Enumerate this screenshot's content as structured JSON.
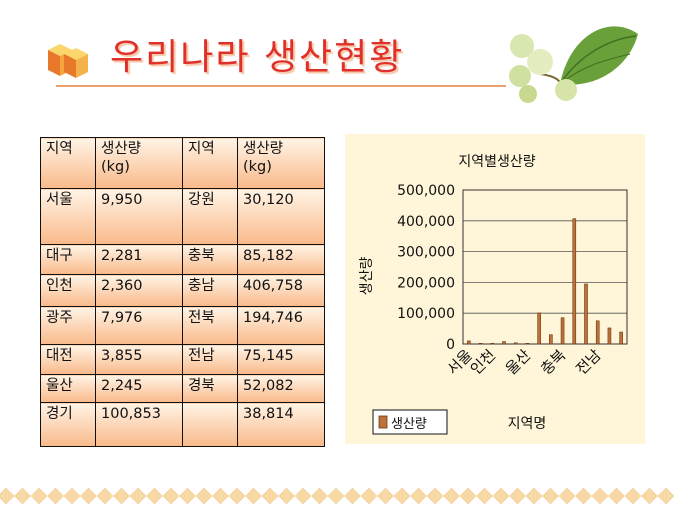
{
  "title": "우리나라 생산현황",
  "table": {
    "headers": [
      [
        "지역",
        "생산량\n(kg)",
        "지역",
        "생산량\n(kg)"
      ]
    ],
    "rows": [
      [
        "서울",
        "9,950",
        "강원",
        "30,120"
      ],
      [
        "대구",
        "2,281",
        "충북",
        "85,182"
      ],
      [
        "인천",
        "2,360",
        "충남",
        "406,758"
      ],
      [
        "광주",
        "7,976",
        "전북",
        "194,746"
      ],
      [
        "대전",
        "3,855",
        "전남",
        "75,145"
      ],
      [
        "울산",
        "2,245",
        "경북",
        "52,082"
      ],
      [
        "경기",
        "100,853",
        "",
        "38,814"
      ]
    ]
  },
  "chart_data": {
    "type": "bar",
    "title": "지역별생산량",
    "xlabel": "지역명",
    "ylabel": "생산량",
    "ylim": [
      0,
      500000
    ],
    "yticks": [
      "0",
      "100,000",
      "200,000",
      "300,000",
      "400,000",
      "500,000"
    ],
    "categories": [
      "서울",
      "대구",
      "인천",
      "광주",
      "대전",
      "울산",
      "경기",
      "강원",
      "충북",
      "충남",
      "전북",
      "전남",
      "경북",
      ""
    ],
    "visible_category_labels": [
      "서울",
      "인천",
      "울산",
      "충북",
      "전남"
    ],
    "series": [
      {
        "name": "생산량",
        "values": [
          9950,
          2281,
          2360,
          7976,
          3855,
          2245,
          100853,
          30120,
          85182,
          406758,
          194746,
          75145,
          52082,
          38814
        ],
        "color": "#c0703a"
      }
    ],
    "grid": true,
    "legend": "bottom-left"
  }
}
